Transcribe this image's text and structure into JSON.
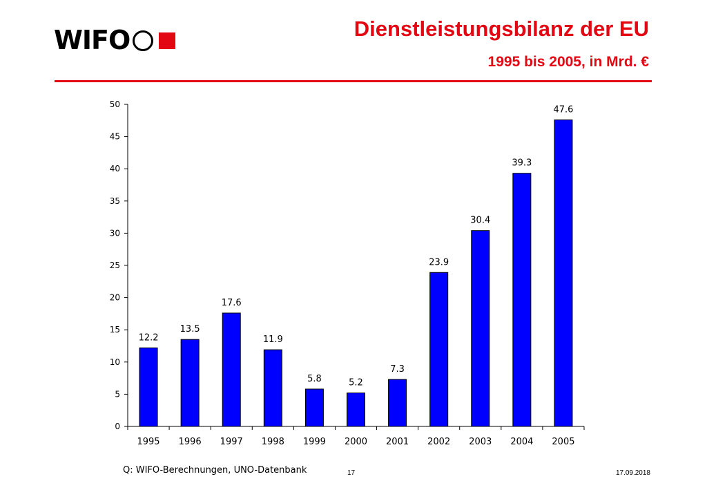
{
  "logo": {
    "text": "WIFO"
  },
  "header": {
    "title": "Dienstleistungsbilanz der EU",
    "subtitle": "1995 bis 2005, in Mrd. €",
    "accent_color": "#e30613"
  },
  "chart_data": {
    "type": "bar",
    "categories": [
      "1995",
      "1996",
      "1997",
      "1998",
      "1999",
      "2000",
      "2001",
      "2002",
      "2003",
      "2004",
      "2005"
    ],
    "values": [
      12.2,
      13.5,
      17.6,
      11.9,
      5.8,
      5.2,
      7.3,
      23.9,
      30.4,
      39.3,
      47.6
    ],
    "data_labels": [
      "12.2",
      "13.5",
      "17.6",
      "11.9",
      "5.8",
      "5.2",
      "7.3",
      "23.9",
      "30.4",
      "39.3",
      "47.6"
    ],
    "ylim": [
      0,
      50
    ],
    "yticks": [
      0,
      5,
      10,
      15,
      20,
      25,
      30,
      35,
      40,
      45,
      50
    ],
    "bar_color": "#0000ff",
    "grid": false,
    "legend": "none"
  },
  "footer": {
    "source": "Q: WIFO-Berechnungen, UNO-Datenbank",
    "page_number": "17",
    "date": "17.09.2018"
  }
}
